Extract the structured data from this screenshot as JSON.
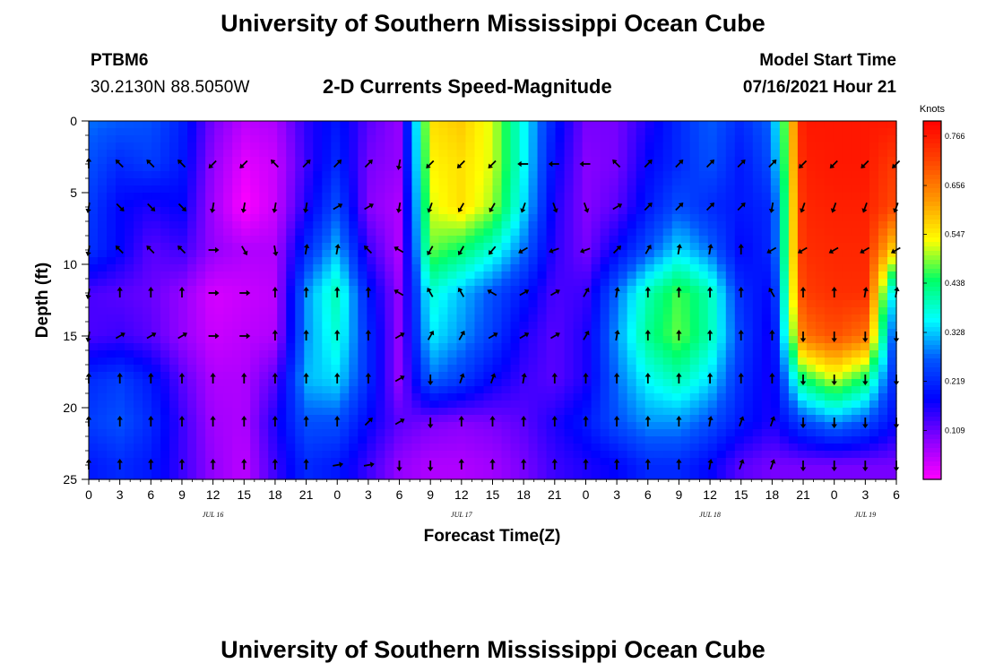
{
  "page": {
    "title_top": "University of Southern Mississippi Ocean Cube",
    "title_bottom": "University of Southern Mississippi Ocean Cube",
    "station": "PTBM6",
    "coords": "30.2130N  88.5050W",
    "subtitle": "2-D Currents Speed-Magnitude",
    "model_start_label": "Model Start Time",
    "model_start_value": "07/16/2021 Hour 21"
  },
  "chart_data": {
    "type": "heatmap",
    "title": "2-D Currents Speed-Magnitude",
    "xlabel": "Forecast Time(Z)",
    "ylabel": "Depth (ft)",
    "x_tick_labels": [
      "0",
      "3",
      "6",
      "9",
      "12",
      "15",
      "18",
      "21",
      "0",
      "3",
      "6",
      "9",
      "12",
      "15",
      "18",
      "21",
      "0",
      "3",
      "6",
      "9",
      "12",
      "15",
      "18",
      "21",
      "0",
      "3",
      "6"
    ],
    "x_range_hours": [
      0,
      78
    ],
    "x_tick_step_hours": 3,
    "date_labels": [
      {
        "text": "JUL 16",
        "hour": 12
      },
      {
        "text": "JUL 17",
        "hour": 36
      },
      {
        "text": "JUL 18",
        "hour": 60
      },
      {
        "text": "JUL 19",
        "hour": 75
      }
    ],
    "y_ticks": [
      0,
      5,
      10,
      15,
      20,
      25
    ],
    "y_range_ft": [
      0,
      25
    ],
    "colorbar": {
      "units": "Knots",
      "labels": [
        "0.766",
        "0.656",
        "0.547",
        "0.438",
        "0.328",
        "0.219",
        "0.109"
      ],
      "range": [
        0.0,
        0.8
      ],
      "stops": [
        "#ff00ff",
        "#8800ff",
        "#0000ff",
        "#0055ff",
        "#00ffff",
        "#00ff66",
        "#ffff00",
        "#ff9900",
        "#ff4400",
        "#ff0000"
      ]
    },
    "depth_ft": [
      0,
      3,
      6,
      9,
      12,
      15,
      18,
      21,
      24
    ],
    "time_hours": [
      0,
      3,
      6,
      9,
      12,
      15,
      18,
      21,
      24,
      27,
      30,
      33,
      36,
      39,
      42,
      45,
      48,
      51,
      54,
      57,
      60,
      63,
      66,
      69,
      72,
      75,
      78
    ],
    "speed_knots": [
      [
        0.28,
        0.27,
        0.26,
        0.21,
        0.1,
        0.05,
        0.06,
        0.15,
        0.2,
        0.12,
        0.08,
        0.56,
        0.58,
        0.52,
        0.36,
        0.2,
        0.1,
        0.1,
        0.16,
        0.22,
        0.27,
        0.22,
        0.28,
        0.77,
        0.77,
        0.77,
        0.77
      ],
      [
        0.26,
        0.22,
        0.24,
        0.2,
        0.08,
        0.02,
        0.04,
        0.14,
        0.22,
        0.1,
        0.08,
        0.54,
        0.56,
        0.52,
        0.36,
        0.18,
        0.09,
        0.1,
        0.18,
        0.22,
        0.26,
        0.2,
        0.26,
        0.76,
        0.77,
        0.77,
        0.72
      ],
      [
        0.24,
        0.18,
        0.16,
        0.18,
        0.07,
        0.0,
        0.04,
        0.16,
        0.26,
        0.09,
        0.06,
        0.52,
        0.56,
        0.5,
        0.34,
        0.16,
        0.09,
        0.12,
        0.2,
        0.26,
        0.22,
        0.2,
        0.22,
        0.75,
        0.76,
        0.76,
        0.7
      ],
      [
        0.23,
        0.18,
        0.12,
        0.14,
        0.08,
        0.06,
        0.06,
        0.22,
        0.32,
        0.14,
        0.06,
        0.48,
        0.44,
        0.38,
        0.28,
        0.15,
        0.1,
        0.18,
        0.26,
        0.34,
        0.28,
        0.18,
        0.22,
        0.74,
        0.75,
        0.75,
        0.55
      ],
      [
        0.13,
        0.12,
        0.11,
        0.08,
        0.03,
        0.04,
        0.05,
        0.3,
        0.4,
        0.2,
        0.08,
        0.38,
        0.32,
        0.26,
        0.2,
        0.13,
        0.14,
        0.28,
        0.4,
        0.47,
        0.4,
        0.22,
        0.18,
        0.72,
        0.74,
        0.74,
        0.3
      ],
      [
        0.13,
        0.14,
        0.12,
        0.08,
        0.04,
        0.05,
        0.06,
        0.3,
        0.38,
        0.22,
        0.08,
        0.35,
        0.3,
        0.24,
        0.16,
        0.12,
        0.16,
        0.3,
        0.42,
        0.48,
        0.4,
        0.24,
        0.16,
        0.66,
        0.7,
        0.66,
        0.22
      ],
      [
        0.22,
        0.24,
        0.2,
        0.12,
        0.06,
        0.06,
        0.12,
        0.32,
        0.34,
        0.22,
        0.08,
        0.28,
        0.24,
        0.18,
        0.14,
        0.12,
        0.16,
        0.28,
        0.36,
        0.4,
        0.34,
        0.22,
        0.16,
        0.44,
        0.52,
        0.44,
        0.2
      ],
      [
        0.24,
        0.26,
        0.22,
        0.14,
        0.07,
        0.06,
        0.16,
        0.26,
        0.26,
        0.18,
        0.12,
        0.1,
        0.09,
        0.1,
        0.12,
        0.16,
        0.2,
        0.26,
        0.3,
        0.3,
        0.26,
        0.2,
        0.16,
        0.25,
        0.3,
        0.26,
        0.18
      ],
      [
        0.2,
        0.22,
        0.2,
        0.14,
        0.08,
        0.05,
        0.14,
        0.22,
        0.2,
        0.14,
        0.08,
        0.06,
        0.06,
        0.07,
        0.1,
        0.14,
        0.16,
        0.18,
        0.22,
        0.22,
        0.18,
        0.12,
        0.1,
        0.1,
        0.1,
        0.1,
        0.1
      ]
    ],
    "direction_deg": [
      [
        0,
        0,
        0,
        0,
        0,
        0,
        0,
        0,
        0,
        0,
        0,
        0,
        0,
        0,
        0,
        0,
        0,
        0,
        0,
        0,
        0,
        0,
        0,
        0,
        0,
        0,
        0
      ],
      [
        0,
        315,
        315,
        315,
        225,
        225,
        315,
        45,
        45,
        45,
        190,
        225,
        225,
        225,
        270,
        270,
        270,
        315,
        45,
        45,
        45,
        45,
        45,
        225,
        225,
        225,
        225
      ],
      [
        190,
        135,
        135,
        135,
        190,
        190,
        190,
        190,
        60,
        60,
        190,
        200,
        210,
        210,
        200,
        160,
        160,
        60,
        45,
        45,
        45,
        45,
        190,
        200,
        200,
        200,
        200
      ],
      [
        190,
        315,
        315,
        315,
        90,
        150,
        170,
        10,
        10,
        315,
        300,
        210,
        210,
        220,
        240,
        250,
        250,
        45,
        30,
        10,
        10,
        0,
        240,
        240,
        240,
        240,
        240
      ],
      [
        190,
        0,
        0,
        0,
        90,
        90,
        0,
        0,
        0,
        0,
        300,
        330,
        330,
        300,
        60,
        60,
        30,
        10,
        0,
        0,
        0,
        0,
        330,
        0,
        0,
        10,
        10
      ],
      [
        190,
        60,
        60,
        60,
        90,
        90,
        0,
        0,
        0,
        0,
        60,
        30,
        30,
        60,
        60,
        60,
        30,
        10,
        0,
        0,
        0,
        0,
        0,
        180,
        180,
        180,
        180
      ],
      [
        0,
        0,
        0,
        0,
        0,
        0,
        0,
        0,
        0,
        0,
        60,
        180,
        20,
        20,
        10,
        0,
        0,
        0,
        0,
        0,
        0,
        0,
        0,
        180,
        180,
        180,
        180
      ],
      [
        0,
        0,
        0,
        0,
        0,
        0,
        0,
        0,
        0,
        45,
        60,
        180,
        0,
        0,
        0,
        0,
        0,
        0,
        0,
        0,
        10,
        20,
        20,
        180,
        180,
        180,
        180
      ],
      [
        0,
        0,
        0,
        0,
        0,
        0,
        0,
        0,
        80,
        80,
        180,
        180,
        0,
        0,
        0,
        0,
        0,
        0,
        0,
        0,
        10,
        20,
        20,
        180,
        180,
        180,
        180
      ]
    ]
  }
}
